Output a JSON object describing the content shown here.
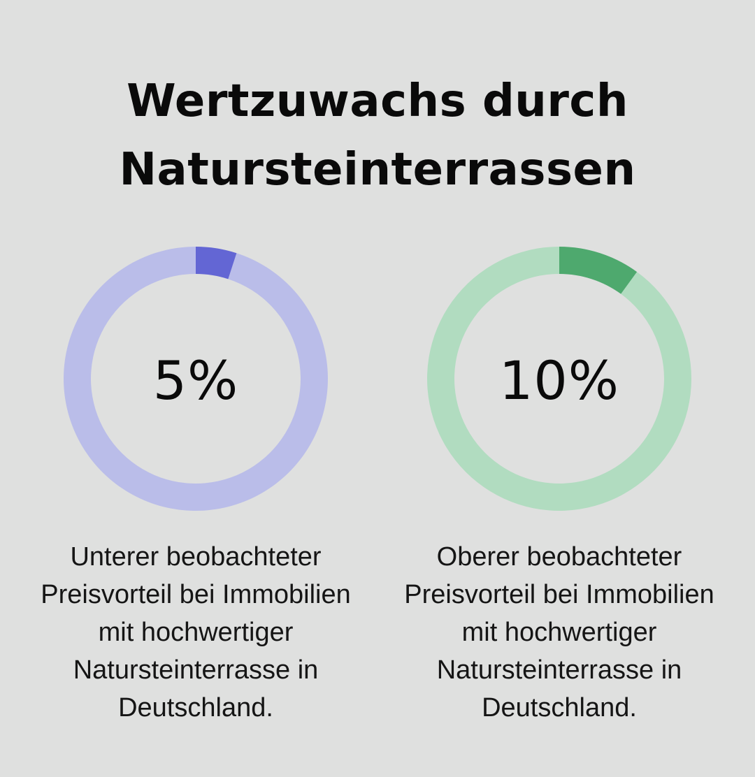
{
  "title": {
    "line1": "Wertzuwachs durch",
    "line2": "Natursteinterrassen"
  },
  "chart_data": [
    {
      "type": "pie",
      "value_label": "5%",
      "value": 5,
      "total": 100,
      "colors": {
        "filled": "#6366d4",
        "track": "#babde9"
      },
      "description": "Unterer beobachteter Preisvorteil bei Immobilien mit hochwertiger Natursteinterrasse in Deutschland."
    },
    {
      "type": "pie",
      "value_label": "10%",
      "value": 10,
      "total": 100,
      "colors": {
        "filled": "#4ea96e",
        "track": "#b1dcc0"
      },
      "description": "Oberer beobachteter Preisvorteil bei Immobilien mit hochwertiger Natursteinterrasse in Deutschland."
    }
  ]
}
